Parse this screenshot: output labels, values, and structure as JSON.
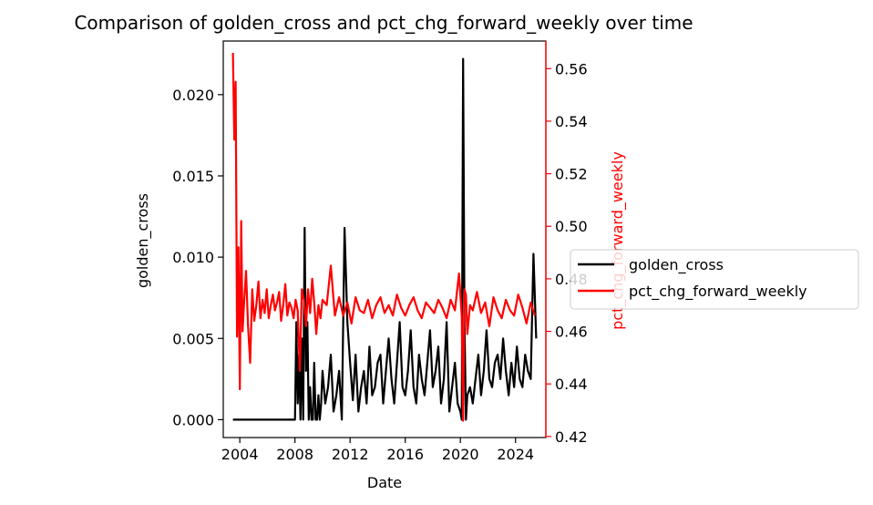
{
  "chart_data": {
    "type": "line",
    "title": "Comparison of golden_cross and pct_chg_forward_weekly over time",
    "xlabel": "Date",
    "ylabel_left": "golden_cross",
    "ylabel_right": "pct_chg_forward_weekly",
    "x_ticks": [
      "2004",
      "2008",
      "2012",
      "2016",
      "2020",
      "2024"
    ],
    "xlim": [
      2002.8,
      2026.2
    ],
    "y_left_ticks": [
      "0.000",
      "0.005",
      "0.010",
      "0.015",
      "0.020"
    ],
    "y_left_lim": [
      -0.0011,
      0.0233
    ],
    "y_right_ticks": [
      "0.42",
      "0.44",
      "0.46",
      "0.48",
      "0.50",
      "0.52",
      "0.54",
      "0.56"
    ],
    "y_right_lim": [
      0.4196,
      0.5705
    ],
    "grid": false,
    "legend_position": "right, outside plot area",
    "right_axis_color": "#ff0000",
    "series": [
      {
        "name": "golden_cross",
        "axis": "left",
        "color": "#000000",
        "x": [
          2003.5,
          2005.0,
          2006.5,
          2008.0,
          2008.1,
          2008.2,
          2008.3,
          2008.4,
          2008.5,
          2008.6,
          2008.7,
          2008.8,
          2008.9,
          2009.0,
          2009.1,
          2009.2,
          2009.3,
          2009.4,
          2009.5,
          2009.6,
          2009.7,
          2009.8,
          2009.9,
          2010.0,
          2010.2,
          2010.4,
          2010.6,
          2010.8,
          2011.0,
          2011.2,
          2011.4,
          2011.6,
          2011.8,
          2012.0,
          2012.2,
          2012.4,
          2012.6,
          2012.8,
          2013.0,
          2013.2,
          2013.4,
          2013.6,
          2013.8,
          2014.0,
          2014.2,
          2014.4,
          2014.6,
          2014.8,
          2015.0,
          2015.2,
          2015.4,
          2015.6,
          2015.8,
          2016.0,
          2016.2,
          2016.4,
          2016.6,
          2016.8,
          2017.0,
          2017.2,
          2017.4,
          2017.6,
          2017.8,
          2018.0,
          2018.2,
          2018.4,
          2018.6,
          2018.8,
          2019.0,
          2019.2,
          2019.4,
          2019.6,
          2019.8,
          2020.0,
          2020.1,
          2020.2,
          2020.3,
          2020.4,
          2020.5,
          2020.7,
          2020.9,
          2021.1,
          2021.3,
          2021.5,
          2021.7,
          2021.9,
          2022.1,
          2022.3,
          2022.5,
          2022.7,
          2022.9,
          2023.1,
          2023.3,
          2023.5,
          2023.7,
          2023.9,
          2024.1,
          2024.3,
          2024.5,
          2024.7,
          2024.9,
          2025.1,
          2025.3,
          2025.5
        ],
        "values": [
          0.0,
          0.0,
          0.0,
          0.0,
          0.006,
          0.001,
          0.004,
          0.0,
          0.005,
          0.0,
          0.0118,
          0.003,
          0.006,
          0.0,
          0.002,
          0.0,
          0.0,
          0.0035,
          0.0,
          0.0,
          0.0015,
          0.0,
          0.001,
          0.003,
          0.001,
          0.002,
          0.004,
          0.0005,
          0.0015,
          0.003,
          0.0,
          0.0118,
          0.006,
          0.0035,
          0.0012,
          0.004,
          0.0005,
          0.002,
          0.003,
          0.001,
          0.0045,
          0.0015,
          0.002,
          0.0035,
          0.004,
          0.001,
          0.003,
          0.005,
          0.0025,
          0.001,
          0.0035,
          0.006,
          0.002,
          0.0015,
          0.003,
          0.0055,
          0.002,
          0.001,
          0.004,
          0.0025,
          0.0015,
          0.0035,
          0.0055,
          0.002,
          0.003,
          0.0045,
          0.001,
          0.0025,
          0.006,
          0.0005,
          0.002,
          0.0035,
          0.001,
          0.0005,
          0.0,
          0.0222,
          0.006,
          0.0,
          0.0015,
          0.002,
          0.001,
          0.0025,
          0.004,
          0.0015,
          0.003,
          0.0055,
          0.0025,
          0.002,
          0.0035,
          0.004,
          0.0025,
          0.005,
          0.003,
          0.0015,
          0.0035,
          0.002,
          0.0045,
          0.0025,
          0.002,
          0.004,
          0.003,
          0.0025,
          0.0102,
          0.005
        ]
      },
      {
        "name": "pct_chg_forward_weekly",
        "axis": "right",
        "color": "#ff0000",
        "x": [
          2003.5,
          2003.6,
          2003.7,
          2003.8,
          2003.9,
          2004.0,
          2004.1,
          2004.2,
          2004.3,
          2004.45,
          2004.6,
          2004.75,
          2004.9,
          2005.05,
          2005.2,
          2005.35,
          2005.5,
          2005.65,
          2005.8,
          2005.95,
          2006.1,
          2006.25,
          2006.4,
          2006.55,
          2006.7,
          2006.85,
          2007.0,
          2007.15,
          2007.3,
          2007.45,
          2007.6,
          2007.75,
          2007.9,
          2008.05,
          2008.2,
          2008.35,
          2008.5,
          2008.65,
          2008.8,
          2008.95,
          2009.1,
          2009.25,
          2009.4,
          2009.55,
          2009.7,
          2009.85,
          2010.0,
          2010.3,
          2010.6,
          2010.9,
          2011.2,
          2011.5,
          2011.8,
          2012.1,
          2012.4,
          2012.7,
          2013.0,
          2013.3,
          2013.6,
          2013.9,
          2014.2,
          2014.5,
          2014.8,
          2015.1,
          2015.4,
          2015.7,
          2016.0,
          2016.3,
          2016.6,
          2016.9,
          2017.2,
          2017.5,
          2017.8,
          2018.1,
          2018.4,
          2018.7,
          2019.0,
          2019.3,
          2019.6,
          2019.9,
          2020.1,
          2020.2,
          2020.3,
          2020.4,
          2020.5,
          2020.7,
          2020.9,
          2021.2,
          2021.5,
          2021.8,
          2022.1,
          2022.4,
          2022.7,
          2023.0,
          2023.3,
          2023.6,
          2023.9,
          2024.2,
          2024.5,
          2024.8,
          2025.1,
          2025.4
        ],
        "values": [
          0.566,
          0.533,
          0.555,
          0.458,
          0.492,
          0.438,
          0.502,
          0.46,
          0.47,
          0.483,
          0.462,
          0.448,
          0.476,
          0.464,
          0.47,
          0.479,
          0.465,
          0.472,
          0.467,
          0.476,
          0.465,
          0.47,
          0.474,
          0.468,
          0.471,
          0.475,
          0.464,
          0.47,
          0.478,
          0.466,
          0.471,
          0.469,
          0.465,
          0.472,
          0.468,
          0.445,
          0.476,
          0.472,
          0.462,
          0.476,
          0.467,
          0.48,
          0.471,
          0.459,
          0.47,
          0.465,
          0.472,
          0.47,
          0.485,
          0.466,
          0.473,
          0.466,
          0.471,
          0.463,
          0.473,
          0.468,
          0.467,
          0.472,
          0.465,
          0.47,
          0.473,
          0.467,
          0.47,
          0.466,
          0.474,
          0.469,
          0.466,
          0.47,
          0.473,
          0.468,
          0.465,
          0.471,
          0.469,
          0.467,
          0.472,
          0.469,
          0.465,
          0.472,
          0.468,
          0.482,
          0.466,
          0.426,
          0.476,
          0.474,
          0.459,
          0.47,
          0.468,
          0.475,
          0.467,
          0.471,
          0.462,
          0.473,
          0.468,
          0.465,
          0.472,
          0.468,
          0.466,
          0.474,
          0.469,
          0.463,
          0.471,
          0.466
        ]
      }
    ]
  }
}
